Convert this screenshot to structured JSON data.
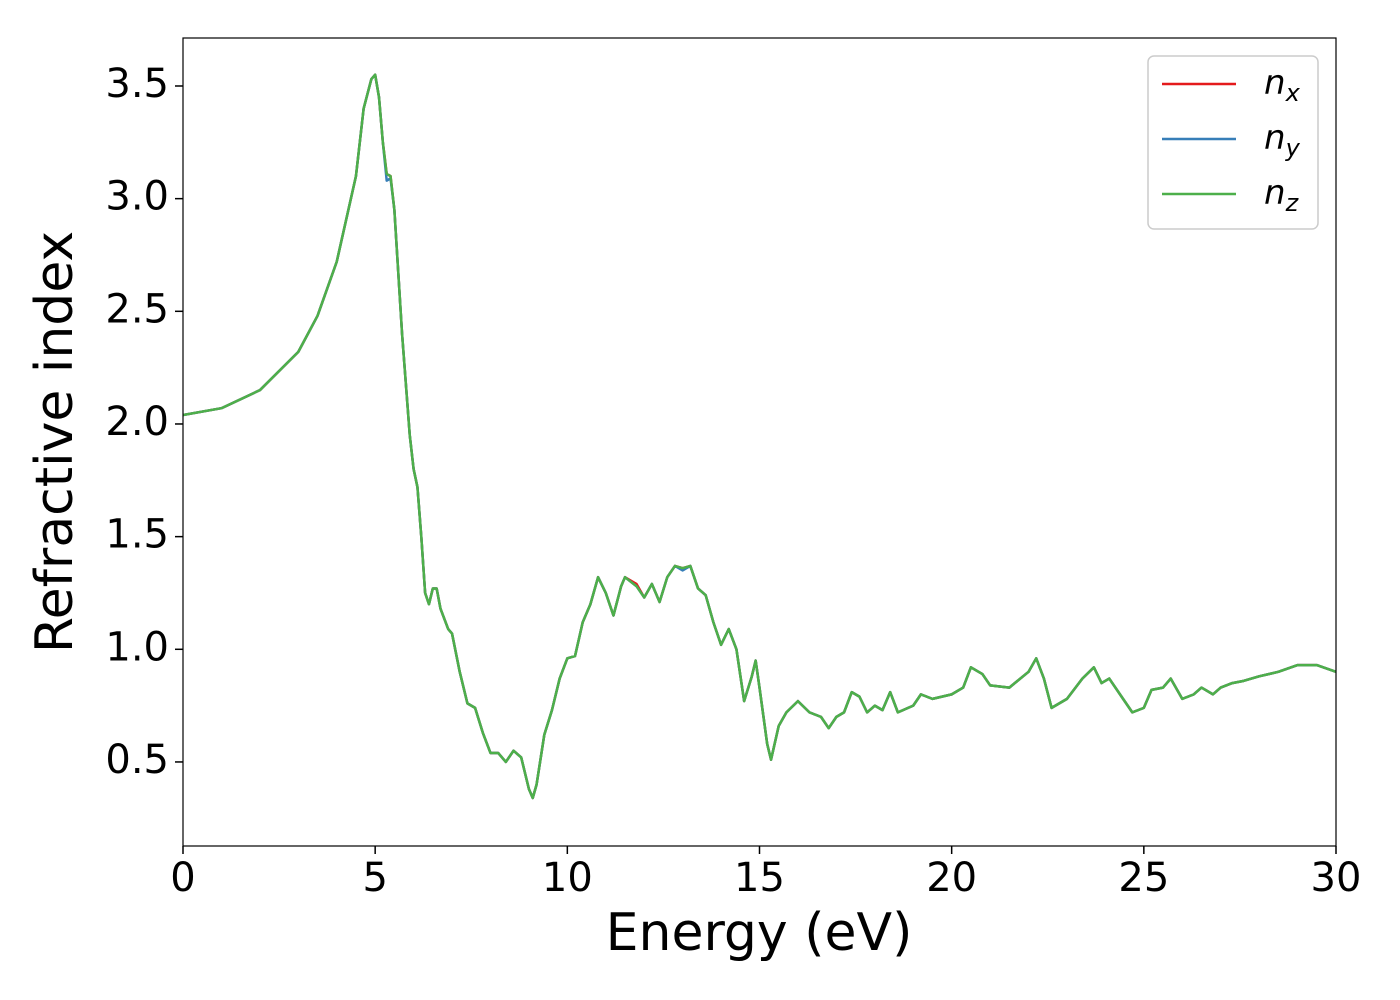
{
  "chart_data": {
    "type": "line",
    "xlabel": "Energy (eV)",
    "ylabel": "Refractive index",
    "x": [
      0,
      1,
      2,
      3,
      3.5,
      4,
      4.5,
      4.7,
      4.9,
      5.0,
      5.1,
      5.2,
      5.3,
      5.4,
      5.5,
      5.7,
      5.9,
      6.0,
      6.1,
      6.2,
      6.3,
      6.4,
      6.5,
      6.6,
      6.7,
      6.9,
      7.0,
      7.2,
      7.4,
      7.6,
      7.8,
      8.0,
      8.2,
      8.4,
      8.6,
      8.8,
      9.0,
      9.1,
      9.2,
      9.4,
      9.6,
      9.8,
      10.0,
      10.2,
      10.4,
      10.6,
      10.8,
      11.0,
      11.2,
      11.4,
      11.5,
      11.8,
      12.0,
      12.2,
      12.4,
      12.6,
      12.8,
      13.0,
      13.2,
      13.4,
      13.6,
      13.8,
      14.0,
      14.2,
      14.4,
      14.6,
      14.8,
      14.9,
      15.0,
      15.2,
      15.3,
      15.5,
      15.7,
      16.0,
      16.3,
      16.6,
      16.8,
      17.0,
      17.2,
      17.4,
      17.6,
      17.8,
      18.0,
      18.2,
      18.4,
      18.6,
      19.0,
      19.2,
      19.5,
      20.0,
      20.3,
      20.5,
      20.8,
      21.0,
      21.5,
      22.0,
      22.2,
      22.4,
      22.6,
      23.0,
      23.4,
      23.7,
      23.9,
      24.1,
      24.5,
      24.7,
      25.0,
      25.2,
      25.5,
      25.7,
      26.0,
      26.3,
      26.5,
      26.8,
      27.0,
      27.3,
      27.6,
      28.0,
      28.5,
      29.0,
      29.5,
      30.0
    ],
    "series": [
      {
        "name": "nx",
        "color": "#e41a1c",
        "values": [
          2.04,
          2.07,
          2.15,
          2.32,
          2.48,
          2.72,
          3.1,
          3.4,
          3.53,
          3.55,
          3.45,
          3.25,
          3.11,
          3.1,
          2.95,
          2.4,
          1.95,
          1.8,
          1.72,
          1.5,
          1.25,
          1.2,
          1.27,
          1.27,
          1.18,
          1.09,
          1.07,
          0.9,
          0.76,
          0.74,
          0.63,
          0.54,
          0.54,
          0.5,
          0.55,
          0.52,
          0.38,
          0.34,
          0.4,
          0.62,
          0.73,
          0.87,
          0.96,
          0.97,
          1.12,
          1.2,
          1.32,
          1.25,
          1.15,
          1.28,
          1.32,
          1.29,
          1.23,
          1.29,
          1.21,
          1.32,
          1.37,
          1.36,
          1.37,
          1.27,
          1.24,
          1.12,
          1.02,
          1.09,
          1.0,
          0.77,
          0.88,
          0.95,
          0.83,
          0.58,
          0.51,
          0.66,
          0.72,
          0.77,
          0.72,
          0.7,
          0.65,
          0.7,
          0.72,
          0.81,
          0.79,
          0.72,
          0.75,
          0.73,
          0.81,
          0.72,
          0.75,
          0.8,
          0.78,
          0.8,
          0.83,
          0.92,
          0.89,
          0.84,
          0.83,
          0.9,
          0.96,
          0.87,
          0.74,
          0.78,
          0.87,
          0.92,
          0.85,
          0.87,
          0.77,
          0.72,
          0.74,
          0.82,
          0.83,
          0.87,
          0.78,
          0.8,
          0.83,
          0.8,
          0.83,
          0.85,
          0.86,
          0.88,
          0.9,
          0.93,
          0.93,
          0.9
        ]
      },
      {
        "name": "ny",
        "color": "#377eb8",
        "values": [
          2.04,
          2.07,
          2.15,
          2.32,
          2.48,
          2.72,
          3.1,
          3.4,
          3.53,
          3.55,
          3.45,
          3.25,
          3.08,
          3.09,
          2.95,
          2.4,
          1.95,
          1.8,
          1.72,
          1.5,
          1.25,
          1.2,
          1.27,
          1.27,
          1.18,
          1.09,
          1.07,
          0.9,
          0.76,
          0.74,
          0.63,
          0.54,
          0.54,
          0.5,
          0.55,
          0.52,
          0.38,
          0.34,
          0.4,
          0.62,
          0.73,
          0.87,
          0.96,
          0.97,
          1.12,
          1.2,
          1.32,
          1.25,
          1.15,
          1.28,
          1.32,
          1.28,
          1.23,
          1.29,
          1.21,
          1.32,
          1.37,
          1.35,
          1.37,
          1.27,
          1.24,
          1.12,
          1.02,
          1.09,
          1.0,
          0.77,
          0.88,
          0.95,
          0.83,
          0.58,
          0.51,
          0.66,
          0.72,
          0.77,
          0.72,
          0.7,
          0.65,
          0.7,
          0.72,
          0.81,
          0.79,
          0.72,
          0.75,
          0.73,
          0.81,
          0.72,
          0.75,
          0.8,
          0.78,
          0.8,
          0.83,
          0.92,
          0.89,
          0.84,
          0.83,
          0.9,
          0.96,
          0.87,
          0.74,
          0.78,
          0.87,
          0.92,
          0.85,
          0.87,
          0.77,
          0.72,
          0.74,
          0.82,
          0.83,
          0.87,
          0.78,
          0.8,
          0.83,
          0.8,
          0.83,
          0.85,
          0.86,
          0.88,
          0.9,
          0.93,
          0.93,
          0.9
        ]
      },
      {
        "name": "nz",
        "color": "#4daf4a",
        "values": [
          2.04,
          2.07,
          2.15,
          2.32,
          2.48,
          2.72,
          3.1,
          3.4,
          3.53,
          3.55,
          3.45,
          3.25,
          3.11,
          3.1,
          2.95,
          2.4,
          1.95,
          1.8,
          1.72,
          1.5,
          1.25,
          1.2,
          1.27,
          1.27,
          1.18,
          1.09,
          1.07,
          0.9,
          0.76,
          0.74,
          0.63,
          0.54,
          0.54,
          0.5,
          0.55,
          0.52,
          0.38,
          0.34,
          0.4,
          0.62,
          0.73,
          0.87,
          0.96,
          0.97,
          1.12,
          1.2,
          1.32,
          1.25,
          1.15,
          1.28,
          1.32,
          1.28,
          1.23,
          1.29,
          1.21,
          1.32,
          1.37,
          1.36,
          1.37,
          1.27,
          1.24,
          1.12,
          1.02,
          1.09,
          1.0,
          0.77,
          0.88,
          0.95,
          0.83,
          0.58,
          0.51,
          0.66,
          0.72,
          0.77,
          0.72,
          0.7,
          0.65,
          0.7,
          0.72,
          0.81,
          0.79,
          0.72,
          0.75,
          0.73,
          0.81,
          0.72,
          0.75,
          0.8,
          0.78,
          0.8,
          0.83,
          0.92,
          0.89,
          0.84,
          0.83,
          0.9,
          0.96,
          0.87,
          0.74,
          0.78,
          0.87,
          0.92,
          0.85,
          0.87,
          0.77,
          0.72,
          0.74,
          0.82,
          0.83,
          0.87,
          0.78,
          0.8,
          0.83,
          0.8,
          0.83,
          0.85,
          0.86,
          0.88,
          0.9,
          0.93,
          0.93,
          0.9
        ]
      }
    ],
    "xlim": [
      0,
      30
    ],
    "xticks": [
      0,
      5,
      10,
      15,
      20,
      25,
      30
    ],
    "ylim": [
      0.127,
      3.713
    ],
    "yticks": [
      0.5,
      {
        "value": 1,
        "label": "1.0"
      },
      1.5,
      {
        "value": 2,
        "label": "2.0"
      },
      2.5,
      {
        "value": 3,
        "label": "3.0"
      },
      3.5
    ],
    "grid": false,
    "legend": "upper right"
  }
}
